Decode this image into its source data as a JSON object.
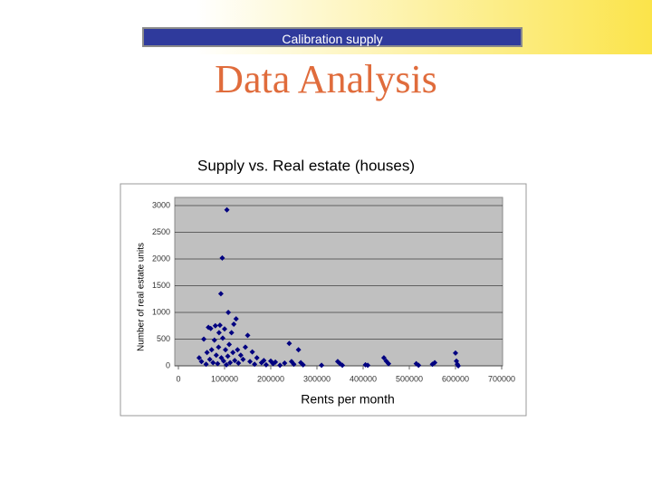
{
  "header": {
    "banner": "Calibration supply",
    "title": "Data Analysis"
  },
  "chart_data": {
    "type": "scatter",
    "title": "Supply vs. Real estate (houses)",
    "x_label": "Rents per month",
    "y_label": "Number of real estate units",
    "xlim": [
      0,
      700000
    ],
    "ylim": [
      0,
      3000
    ],
    "xticks": [
      0,
      100000,
      200000,
      300000,
      400000,
      500000,
      600000,
      700000
    ],
    "yticks": [
      0,
      500,
      1000,
      1500,
      2000,
      2500,
      3000
    ],
    "grid": true,
    "series": [
      {
        "color": "#000080",
        "x": [
          45000,
          50000,
          55000,
          60000,
          62000,
          65000,
          68000,
          70000,
          72000,
          75000,
          78000,
          80000,
          82000,
          85000,
          87000,
          88000,
          90000,
          92000,
          93000,
          95000,
          96000,
          98000,
          100000,
          102000,
          104000,
          105000,
          107000,
          108000,
          110000,
          112000,
          115000,
          118000,
          120000,
          122000,
          125000,
          128000,
          130000,
          135000,
          140000,
          145000,
          150000,
          155000,
          160000,
          165000,
          170000,
          180000,
          185000,
          190000,
          200000,
          205000,
          210000,
          220000,
          230000,
          240000,
          245000,
          250000,
          260000,
          265000,
          270000,
          310000,
          345000,
          350000,
          355000,
          405000,
          410000,
          445000,
          450000,
          455000,
          515000,
          520000,
          550000,
          555000,
          600000,
          602000,
          604000,
          606000
        ],
        "values": [
          150,
          80,
          500,
          30,
          250,
          720,
          120,
          700,
          300,
          60,
          480,
          750,
          200,
          40,
          350,
          620,
          760,
          1350,
          150,
          2020,
          520,
          90,
          690,
          300,
          20,
          2920,
          180,
          1000,
          400,
          60,
          620,
          250,
          780,
          100,
          880,
          300,
          50,
          200,
          120,
          350,
          570,
          80,
          260,
          30,
          150,
          60,
          100,
          20,
          90,
          40,
          70,
          10,
          50,
          420,
          80,
          30,
          300,
          60,
          20,
          10,
          80,
          40,
          10,
          20,
          10,
          150,
          90,
          40,
          40,
          10,
          30,
          60,
          240,
          90,
          30,
          0
        ]
      }
    ]
  }
}
